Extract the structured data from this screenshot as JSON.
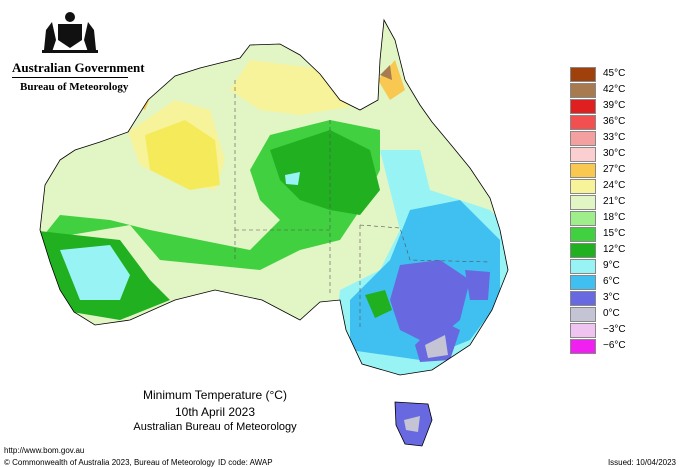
{
  "header": {
    "government": "Australian Government",
    "bureau": "Bureau of Meteorology"
  },
  "map": {
    "title": "Minimum Temperature (°C)",
    "date": "10th April 2023",
    "source": "Australian Bureau of Meteorology"
  },
  "legend": [
    {
      "label": "45°C",
      "color": "#a0400a"
    },
    {
      "label": "42°C",
      "color": "#a87a50"
    },
    {
      "label": "39°C",
      "color": "#e02020"
    },
    {
      "label": "36°C",
      "color": "#f25050"
    },
    {
      "label": "33°C",
      "color": "#f5a0a0"
    },
    {
      "label": "30°C",
      "color": "#fbcfcf"
    },
    {
      "label": "27°C",
      "color": "#f8c850"
    },
    {
      "label": "24°C",
      "color": "#f7f39a"
    },
    {
      "label": "21°C",
      "color": "#e2f5c4"
    },
    {
      "label": "18°C",
      "color": "#9fee8c"
    },
    {
      "label": "15°C",
      "color": "#40d040"
    },
    {
      "label": "12°C",
      "color": "#20b020"
    },
    {
      "label": "9°C",
      "color": "#98f4f4"
    },
    {
      "label": "6°C",
      "color": "#40c0f0"
    },
    {
      "label": "3°C",
      "color": "#6868e0"
    },
    {
      "label": "0°C",
      "color": "#c4c4d4"
    },
    {
      "label": "−3°C",
      "color": "#f0c4f0"
    },
    {
      "label": "−6°C",
      "color": "#f020f0"
    }
  ],
  "footer": {
    "url": "http://www.bom.gov.au",
    "copyright": "© Commonwealth of Australia 2023, Bureau of Meteorology",
    "id_code": "ID code: AWAP",
    "issued": "Issued: 10/04/2023"
  }
}
